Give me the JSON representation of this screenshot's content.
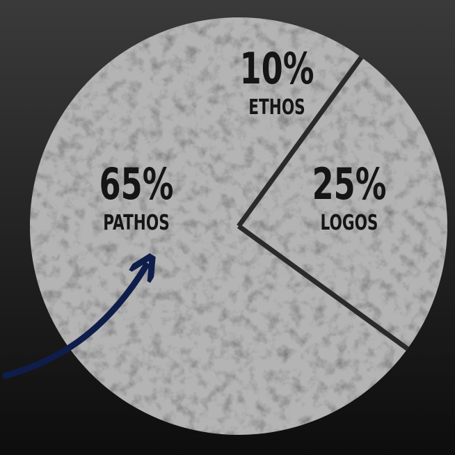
{
  "chart_data": {
    "type": "pie",
    "categories": [
      "ETHOS",
      "LOGOS",
      "PATHOS"
    ],
    "values": [
      10,
      25,
      65
    ],
    "value_labels": [
      "10%",
      "25%",
      "65%"
    ],
    "color": "#b4b4b4"
  }
}
